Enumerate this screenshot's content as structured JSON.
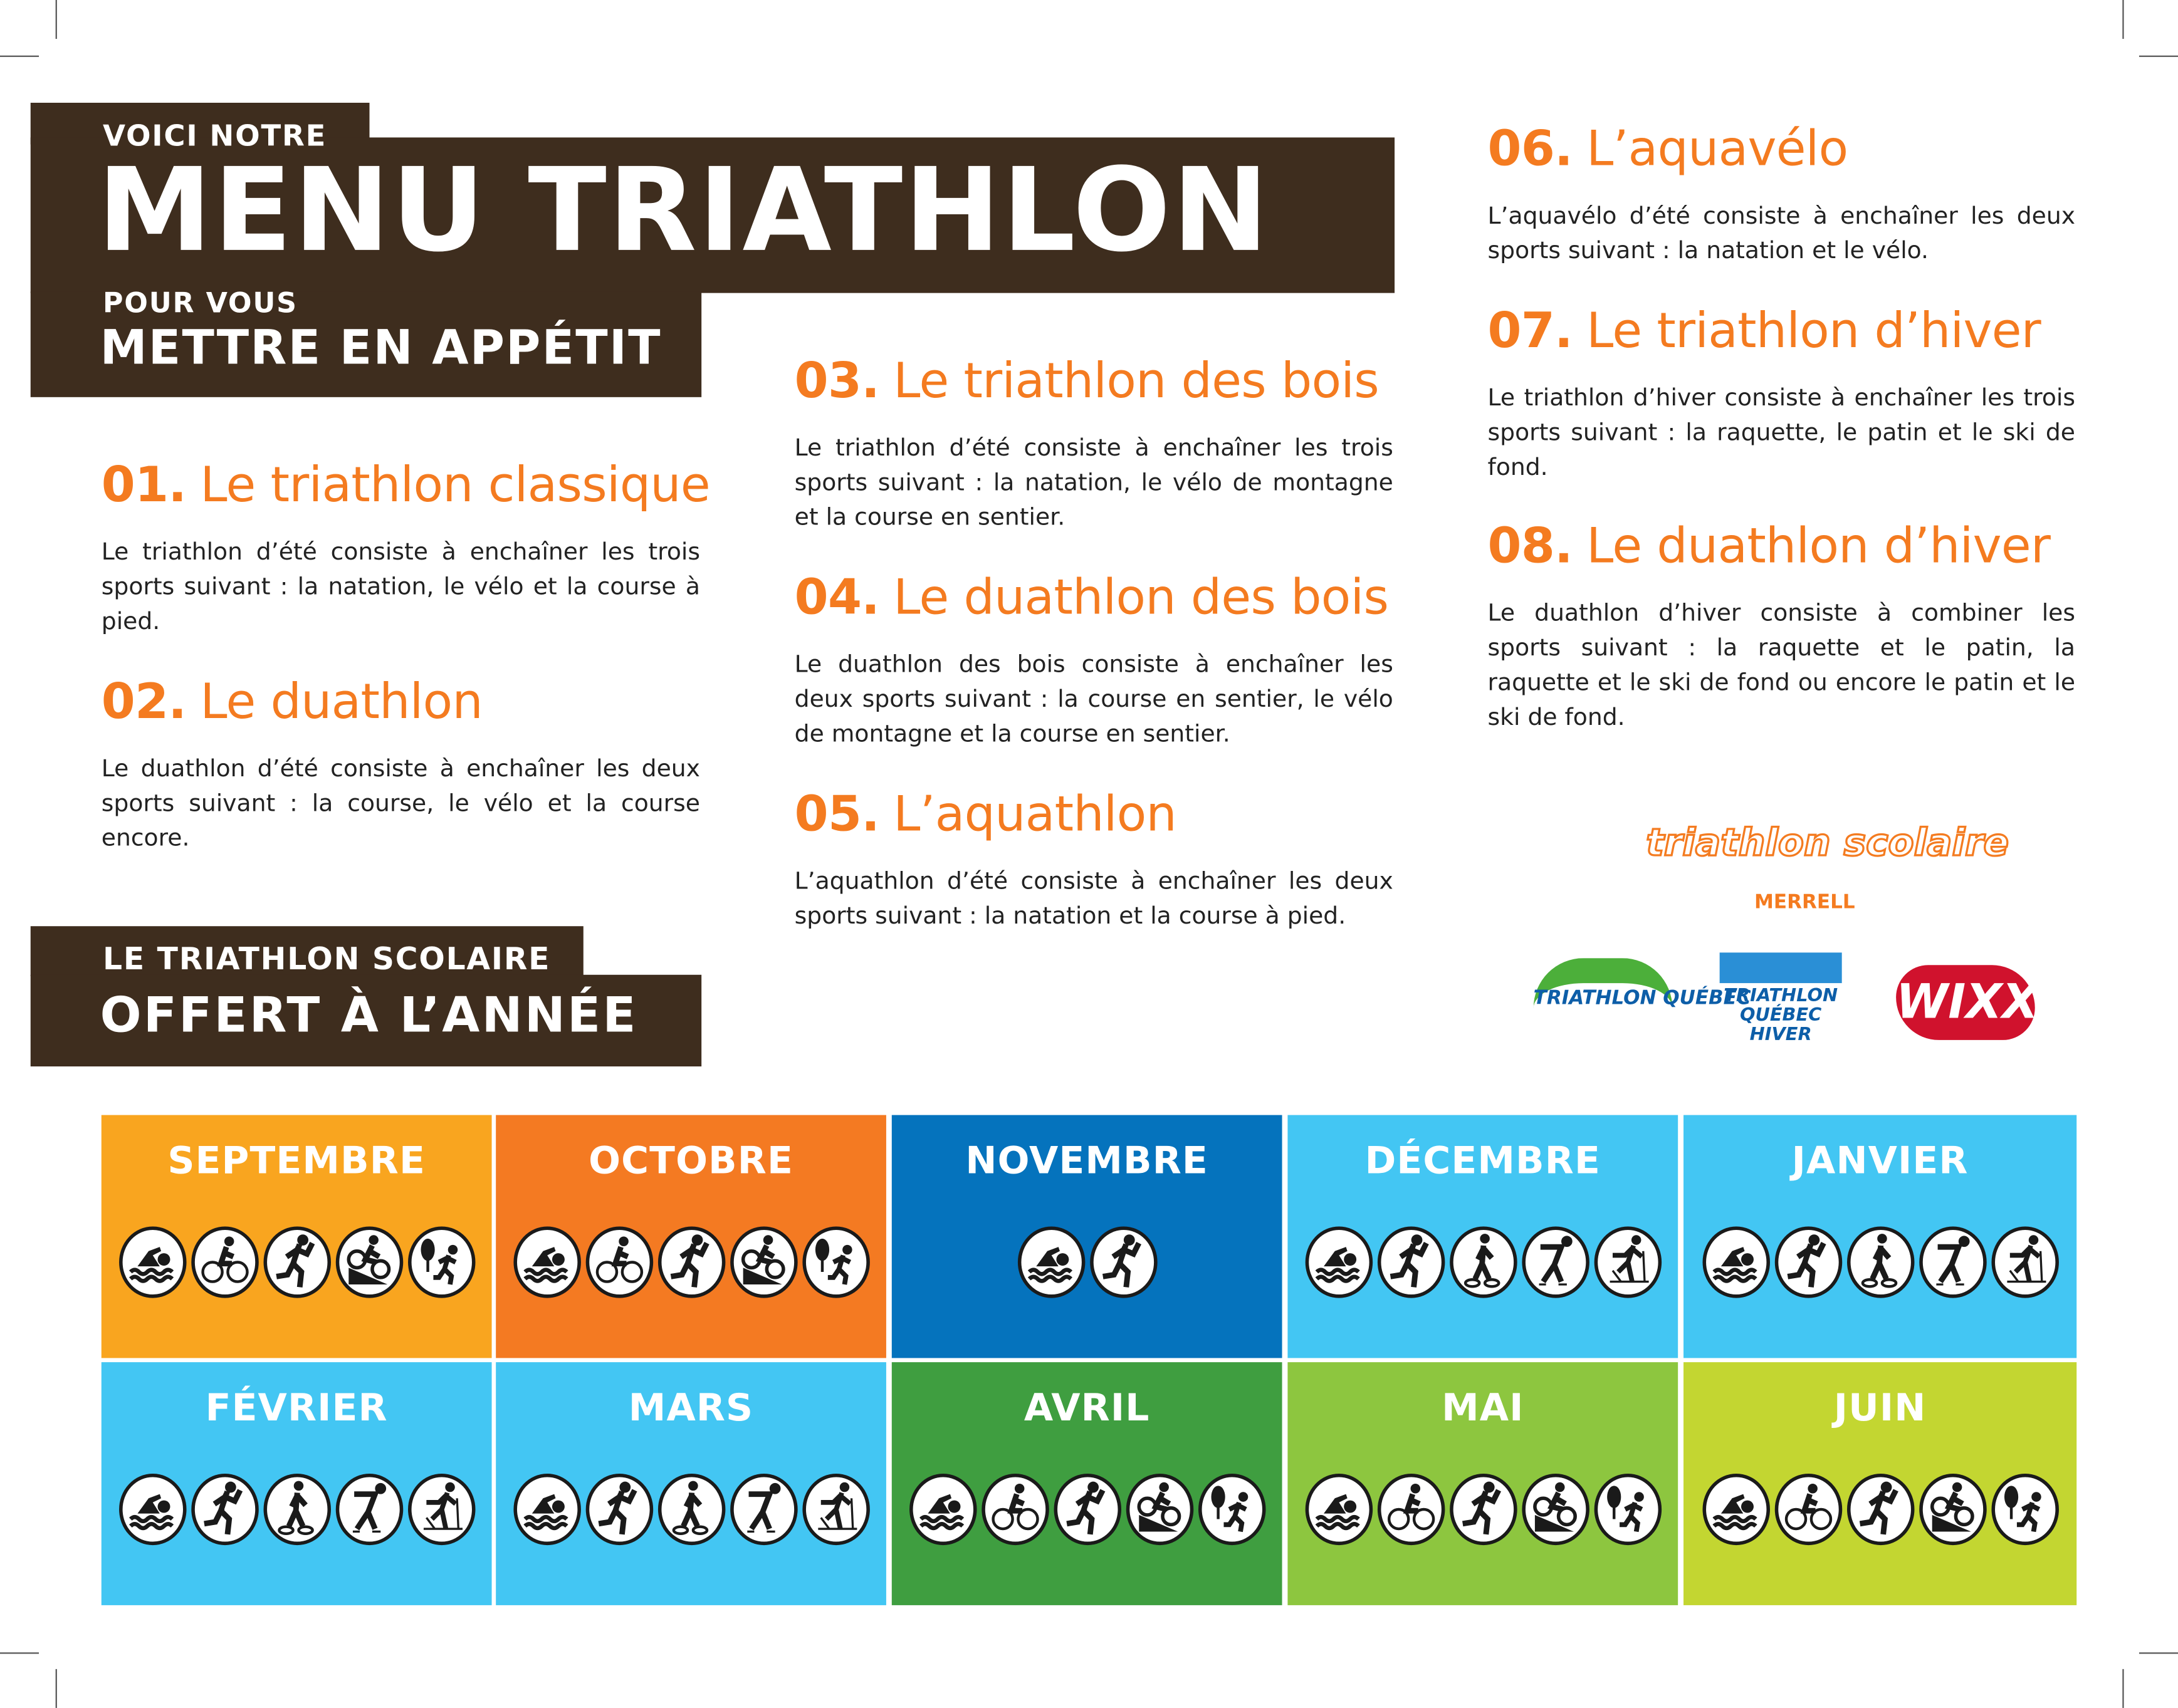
{
  "header": {
    "kicker": "VOICI NOTRE",
    "title": "MENU TRIATHLON",
    "sub_kicker": "POUR VOUS",
    "subtitle": "METTRE EN APPÉTIT"
  },
  "sections": [
    {
      "num": "01.",
      "title": "Le triathlon classique",
      "text": "Le triathlon d’été consiste à enchaîner les trois sports suivant : la natation, le vélo et la course à pied."
    },
    {
      "num": "02.",
      "title": "Le duathlon",
      "text": "Le duathlon d’été consiste à enchaîner les deux sports suivant : la course, le vélo et la course encore."
    },
    {
      "num": "03.",
      "title": "Le triathlon des bois",
      "text": "Le triathlon d’été consiste à enchaîner les trois sports suivant : la natation, le vélo de montagne et la course en sentier."
    },
    {
      "num": "04.",
      "title": "Le duathlon des bois",
      "text": "Le duathlon des bois consiste à enchaîner les deux sports suivant : la course en sentier, le vélo de montagne et la course en sentier."
    },
    {
      "num": "05.",
      "title": "L’aquathlon",
      "text": "L’aquathlon d’été consiste à enchaîner les deux sports suivant : la natation et la course à pied."
    },
    {
      "num": "06.",
      "title": "L’aquavélo",
      "text": "L’aquavélo d’été consiste à enchaîner les deux sports suivant : la natation et le vélo."
    },
    {
      "num": "07.",
      "title": "Le triathlon d’hiver",
      "text": "Le triathlon d’hiver consiste à enchaîner les trois sports suivant : la raquette, le patin et le ski de fond."
    },
    {
      "num": "08.",
      "title": "Le duathlon d’hiver",
      "text": "Le duathlon d’hiver consiste à combiner les sports suivant : la raquette et le patin, la raquette et le ski de fond ou encore le patin et le ski de fond."
    }
  ],
  "school": {
    "kicker": "LE TRIATHLON SCOLAIRE",
    "title": "OFFERT À L’ANNÉE"
  },
  "logos": {
    "triathlon_scolaire": "triathlon scolaire",
    "merrell": "MERRELL",
    "triathlon_quebec": "TRIATHLON QUÉBEC",
    "triathlon_quebec_hiver": "TRIATHLON QUÉBEC HIVER",
    "wixx": "WIXX"
  },
  "months": [
    {
      "name": "SEPTEMBRE",
      "color": "#f9a51f",
      "icons": [
        "swim-icon",
        "bike-icon",
        "run-icon",
        "mountain-bike-icon",
        "trail-run-icon"
      ]
    },
    {
      "name": "OCTOBRE",
      "color": "#f47a22",
      "icons": [
        "swim-icon",
        "bike-icon",
        "run-icon",
        "mountain-bike-icon",
        "trail-run-icon"
      ]
    },
    {
      "name": "NOVEMBRE",
      "color": "#0573bd",
      "icons": [
        "swim-icon",
        "run-icon"
      ]
    },
    {
      "name": "DÉCEMBRE",
      "color": "#43c6f3",
      "icons": [
        "swim-icon",
        "run-icon",
        "snowshoe-icon",
        "skate-icon",
        "cross-country-ski-icon"
      ]
    },
    {
      "name": "JANVIER",
      "color": "#43c6f3",
      "icons": [
        "swim-icon",
        "run-icon",
        "snowshoe-icon",
        "skate-icon",
        "cross-country-ski-icon"
      ]
    },
    {
      "name": "FÉVRIER",
      "color": "#43c6f3",
      "icons": [
        "swim-icon",
        "run-icon",
        "snowshoe-icon",
        "skate-icon",
        "cross-country-ski-icon"
      ]
    },
    {
      "name": "MARS",
      "color": "#43c6f3",
      "icons": [
        "swim-icon",
        "run-icon",
        "snowshoe-icon",
        "skate-icon",
        "cross-country-ski-icon"
      ]
    },
    {
      "name": "AVRIL",
      "color": "#3f9e40",
      "icons": [
        "swim-icon",
        "bike-icon",
        "run-icon",
        "mountain-bike-icon",
        "trail-run-icon"
      ]
    },
    {
      "name": "MAI",
      "color": "#8dc63f",
      "icons": [
        "swim-icon",
        "bike-icon",
        "run-icon",
        "mountain-bike-icon",
        "trail-run-icon"
      ]
    },
    {
      "name": "JUIN",
      "color": "#c3d631",
      "icons": [
        "swim-icon",
        "bike-icon",
        "run-icon",
        "mountain-bike-icon",
        "trail-run-icon"
      ]
    }
  ]
}
